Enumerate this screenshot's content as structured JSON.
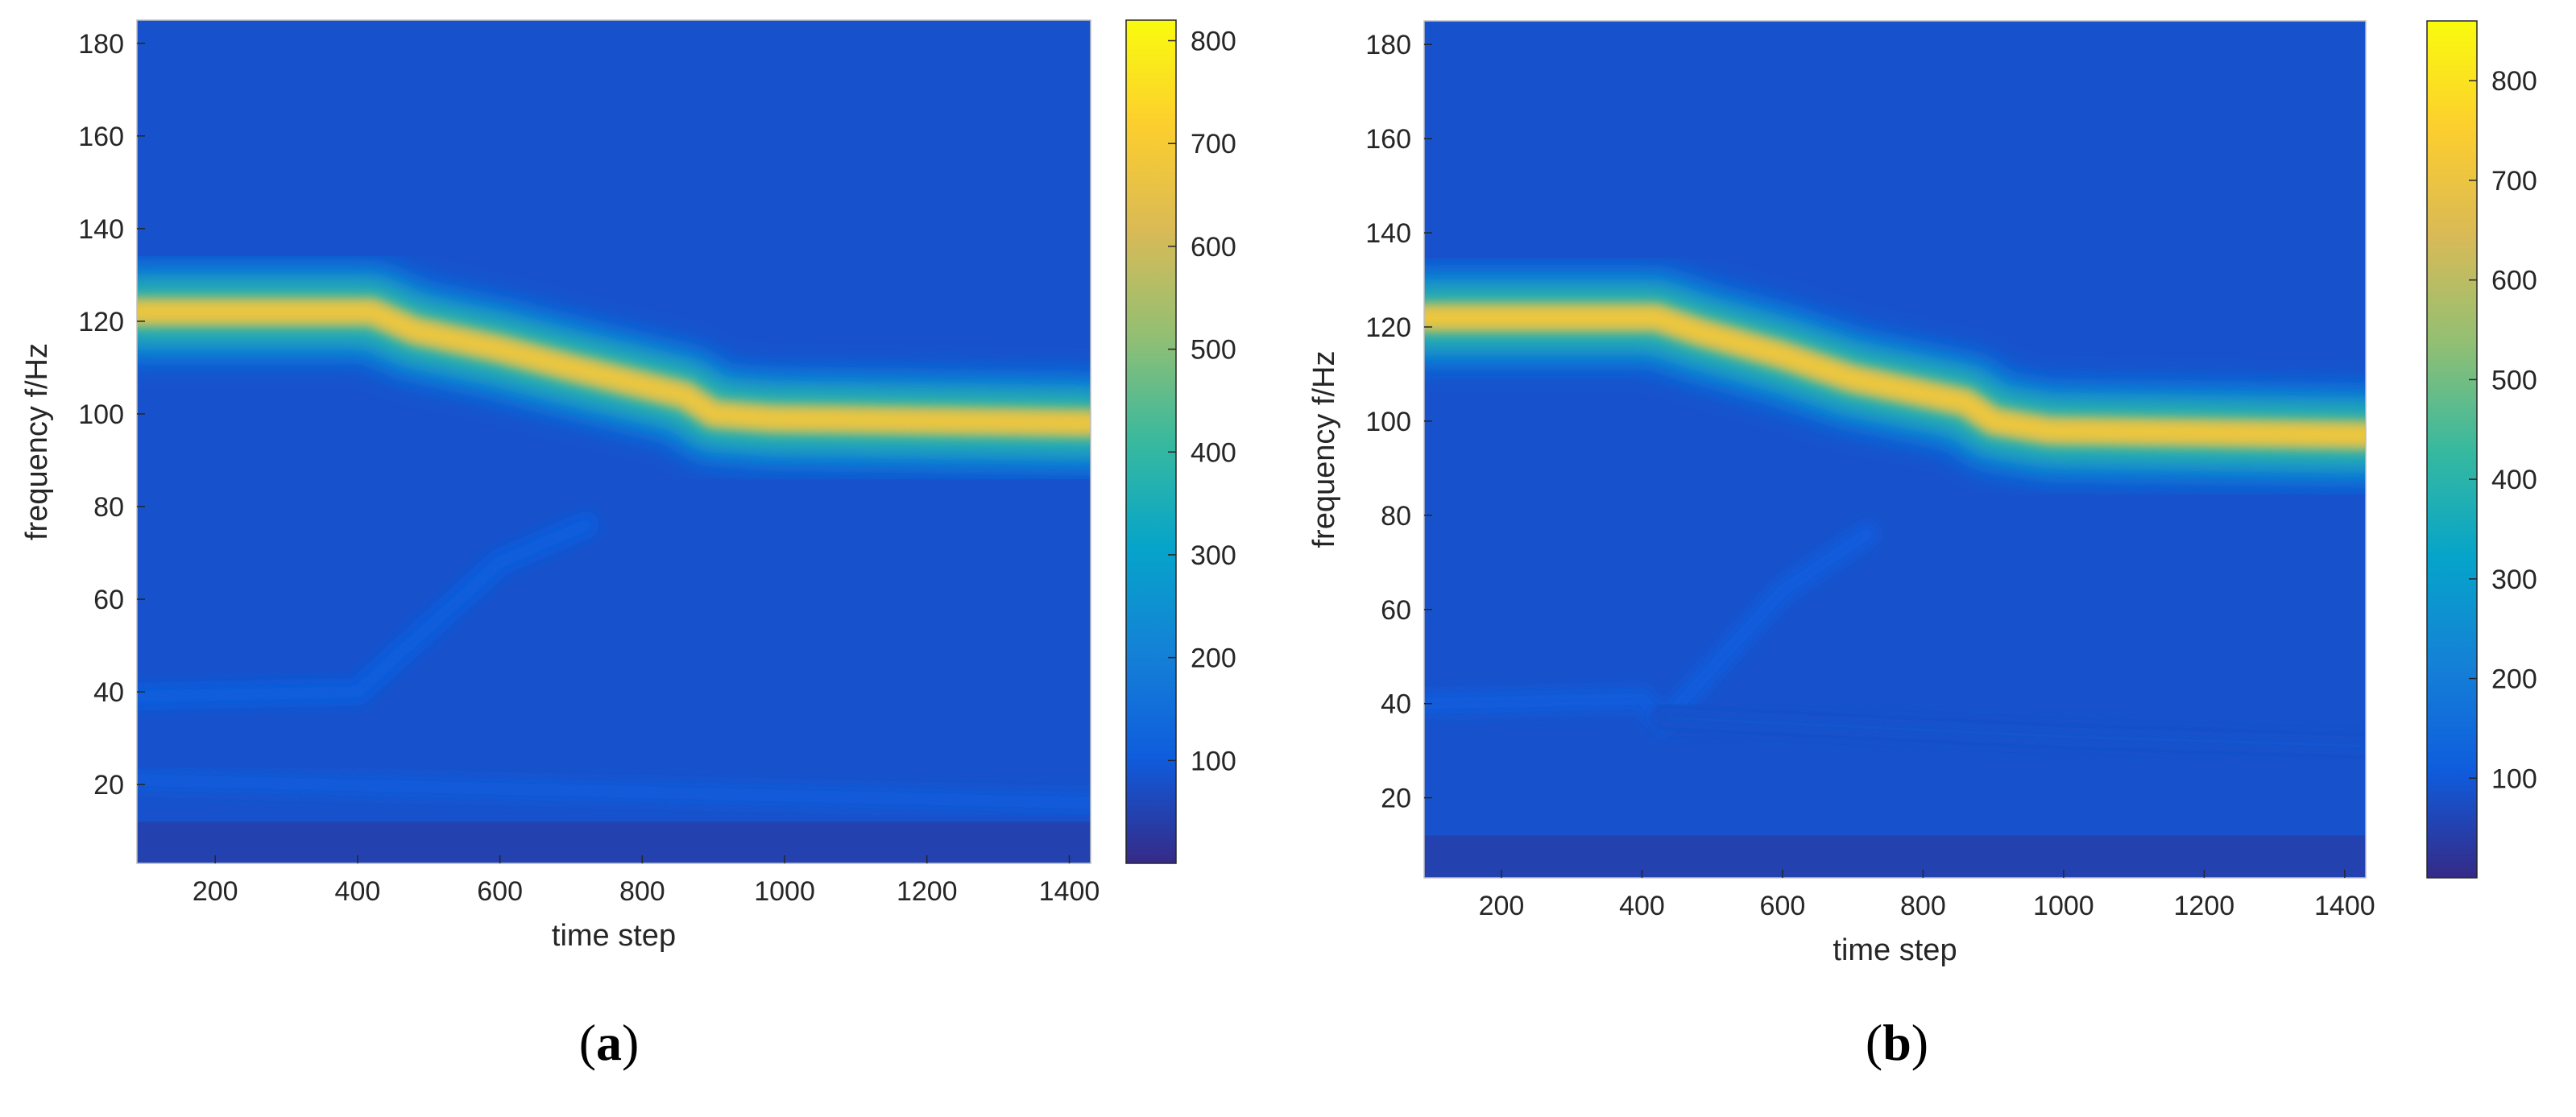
{
  "chart_data": [
    {
      "type": "heatmap",
      "panel_label": "a",
      "xlabel": "time step",
      "ylabel": "frequency f/Hz",
      "x_range": [
        90,
        1430
      ],
      "y_range": [
        3,
        185
      ],
      "xticks": [
        200,
        400,
        600,
        800,
        1000,
        1200,
        1400
      ],
      "yticks": [
        20,
        40,
        60,
        80,
        100,
        120,
        140,
        160,
        180
      ],
      "colorbar": {
        "range": [
          0,
          820
        ],
        "ticks": [
          100,
          200,
          300,
          400,
          500,
          600,
          700,
          800
        ]
      },
      "colormap": "parula",
      "ridges": [
        {
          "name": "dominant",
          "intensity": 680,
          "points": [
            [
              90,
              122
            ],
            [
              420,
              122
            ],
            [
              480,
              118
            ],
            [
              600,
              114
            ],
            [
              700,
              110
            ],
            [
              860,
              104
            ],
            [
              900,
              100
            ],
            [
              980,
              99
            ],
            [
              1430,
              98
            ]
          ]
        },
        {
          "name": "low",
          "intensity": 110,
          "points": [
            [
              90,
              39
            ],
            [
              400,
              40
            ],
            [
              600,
              68
            ],
            [
              720,
              76
            ]
          ]
        },
        {
          "name": "base",
          "intensity": 100,
          "points": [
            [
              90,
              21
            ],
            [
              1430,
              16
            ]
          ]
        }
      ]
    },
    {
      "type": "heatmap",
      "panel_label": "b",
      "xlabel": "time step",
      "ylabel": "frequency f/Hz",
      "x_range": [
        90,
        1430
      ],
      "y_range": [
        3,
        185
      ],
      "xticks": [
        200,
        400,
        600,
        800,
        1000,
        1200,
        1400
      ],
      "yticks": [
        20,
        40,
        60,
        80,
        100,
        120,
        140,
        160,
        180
      ],
      "colorbar": {
        "range": [
          0,
          860
        ],
        "ticks": [
          100,
          200,
          300,
          400,
          500,
          600,
          700,
          800
        ]
      },
      "colormap": "parula",
      "ridges": [
        {
          "name": "dominant",
          "intensity": 720,
          "points": [
            [
              90,
              122
            ],
            [
              420,
              122
            ],
            [
              480,
              119
            ],
            [
              600,
              114
            ],
            [
              700,
              109
            ],
            [
              860,
              104
            ],
            [
              900,
              100
            ],
            [
              980,
              98
            ],
            [
              1430,
              97
            ]
          ]
        },
        {
          "name": "low",
          "intensity": 110,
          "points": [
            [
              90,
              40
            ],
            [
              400,
              41
            ],
            [
              430,
              36
            ],
            [
              600,
              64
            ],
            [
              720,
              76
            ]
          ]
        },
        {
          "name": "low2",
          "intensity": 90,
          "points": [
            [
              430,
              37
            ],
            [
              1000,
              33
            ],
            [
              1430,
              31
            ]
          ]
        }
      ]
    }
  ]
}
